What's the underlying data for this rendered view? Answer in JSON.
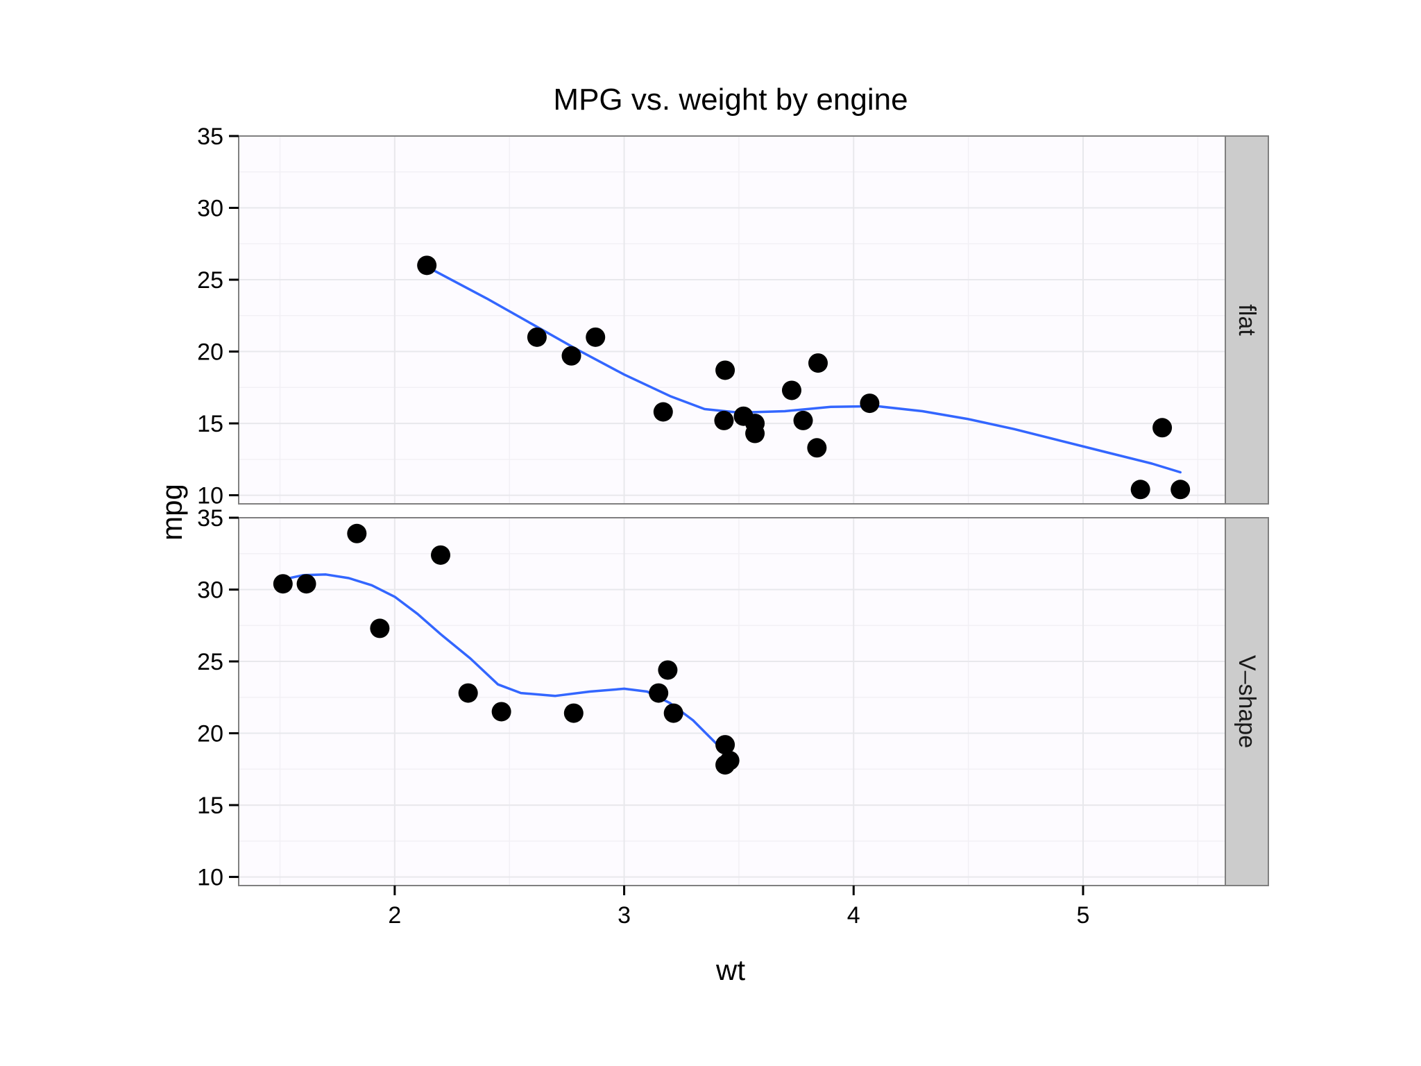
{
  "chart_data": {
    "type": "scatter",
    "title": "MPG vs. weight by engine",
    "xlabel": "wt",
    "ylabel": "mpg",
    "xlim": [
      1.32,
      5.62
    ],
    "ylim": [
      9.4,
      35.0
    ],
    "x_ticks": [
      2,
      3,
      4,
      5
    ],
    "y_ticks": [
      10,
      15,
      20,
      25,
      30,
      35
    ],
    "grid": true,
    "legend": "none",
    "colors": {
      "point": "#000000",
      "smooth": "#3366ff",
      "panel_bg": "#fdfbff",
      "grid": "#e8e8ec",
      "strip_bg": "#cccccc",
      "border": "#7f7f7f"
    },
    "panels": [
      {
        "facet": "flat",
        "points": [
          {
            "x": 2.14,
            "y": 26.0
          },
          {
            "x": 2.62,
            "y": 21.0
          },
          {
            "x": 2.77,
            "y": 19.7
          },
          {
            "x": 2.875,
            "y": 21.0
          },
          {
            "x": 3.17,
            "y": 15.8
          },
          {
            "x": 3.435,
            "y": 15.2
          },
          {
            "x": 3.44,
            "y": 18.7
          },
          {
            "x": 3.52,
            "y": 15.5
          },
          {
            "x": 3.57,
            "y": 15.0
          },
          {
            "x": 3.57,
            "y": 14.3
          },
          {
            "x": 3.73,
            "y": 17.3
          },
          {
            "x": 3.78,
            "y": 15.2
          },
          {
            "x": 3.84,
            "y": 13.3
          },
          {
            "x": 3.845,
            "y": 19.2
          },
          {
            "x": 4.07,
            "y": 16.4
          },
          {
            "x": 5.25,
            "y": 10.4
          },
          {
            "x": 5.345,
            "y": 14.7
          },
          {
            "x": 5.424,
            "y": 10.4
          }
        ],
        "smooth": [
          {
            "x": 2.14,
            "y": 25.9
          },
          {
            "x": 2.4,
            "y": 23.7
          },
          {
            "x": 2.6,
            "y": 21.9
          },
          {
            "x": 2.8,
            "y": 20.1
          },
          {
            "x": 3.0,
            "y": 18.4
          },
          {
            "x": 3.2,
            "y": 16.9
          },
          {
            "x": 3.35,
            "y": 16.0
          },
          {
            "x": 3.5,
            "y": 15.75
          },
          {
            "x": 3.7,
            "y": 15.85
          },
          {
            "x": 3.9,
            "y": 16.15
          },
          {
            "x": 4.1,
            "y": 16.2
          },
          {
            "x": 4.3,
            "y": 15.85
          },
          {
            "x": 4.5,
            "y": 15.3
          },
          {
            "x": 4.7,
            "y": 14.6
          },
          {
            "x": 4.9,
            "y": 13.8
          },
          {
            "x": 5.1,
            "y": 13.0
          },
          {
            "x": 5.3,
            "y": 12.2
          },
          {
            "x": 5.424,
            "y": 11.6
          }
        ]
      },
      {
        "facet": "V–shape",
        "points": [
          {
            "x": 1.513,
            "y": 30.4
          },
          {
            "x": 1.615,
            "y": 30.4
          },
          {
            "x": 1.835,
            "y": 33.9
          },
          {
            "x": 1.935,
            "y": 27.3
          },
          {
            "x": 2.2,
            "y": 32.4
          },
          {
            "x": 2.32,
            "y": 22.8
          },
          {
            "x": 2.465,
            "y": 21.5
          },
          {
            "x": 2.78,
            "y": 21.4
          },
          {
            "x": 3.15,
            "y": 22.8
          },
          {
            "x": 3.19,
            "y": 24.4
          },
          {
            "x": 3.215,
            "y": 21.4
          },
          {
            "x": 3.44,
            "y": 19.2
          },
          {
            "x": 3.44,
            "y": 17.8
          },
          {
            "x": 3.46,
            "y": 18.1
          }
        ],
        "smooth": [
          {
            "x": 1.513,
            "y": 30.7
          },
          {
            "x": 1.6,
            "y": 31.0
          },
          {
            "x": 1.7,
            "y": 31.05
          },
          {
            "x": 1.8,
            "y": 30.8
          },
          {
            "x": 1.9,
            "y": 30.3
          },
          {
            "x": 2.0,
            "y": 29.5
          },
          {
            "x": 2.1,
            "y": 28.3
          },
          {
            "x": 2.2,
            "y": 26.9
          },
          {
            "x": 2.33,
            "y": 25.2
          },
          {
            "x": 2.45,
            "y": 23.4
          },
          {
            "x": 2.55,
            "y": 22.8
          },
          {
            "x": 2.7,
            "y": 22.6
          },
          {
            "x": 2.85,
            "y": 22.9
          },
          {
            "x": 3.0,
            "y": 23.1
          },
          {
            "x": 3.1,
            "y": 22.9
          },
          {
            "x": 3.2,
            "y": 22.1
          },
          {
            "x": 3.3,
            "y": 20.9
          },
          {
            "x": 3.4,
            "y": 19.3
          },
          {
            "x": 3.46,
            "y": 18.3
          }
        ]
      }
    ]
  }
}
